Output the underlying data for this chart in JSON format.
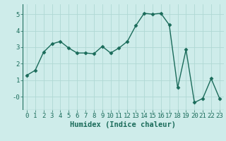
{
  "x": [
    0,
    1,
    2,
    3,
    4,
    5,
    6,
    7,
    8,
    9,
    10,
    11,
    12,
    13,
    14,
    15,
    16,
    17,
    18,
    19,
    20,
    21,
    22,
    23
  ],
  "y": [
    1.3,
    1.6,
    2.7,
    3.2,
    3.35,
    2.95,
    2.65,
    2.65,
    2.6,
    3.05,
    2.65,
    2.95,
    3.35,
    4.3,
    5.05,
    5.0,
    5.05,
    4.35,
    0.55,
    2.85,
    -0.35,
    -0.1,
    1.1,
    -0.1
  ],
  "line_color": "#1a6b5a",
  "marker": "D",
  "marker_size": 2.5,
  "xlabel": "Humidex (Indice chaleur)",
  "ylim": [
    -0.8,
    5.6
  ],
  "xlim": [
    -0.5,
    23.5
  ],
  "yticks": [
    0,
    1,
    2,
    3,
    4,
    5
  ],
  "ytick_labels": [
    "-0",
    "1",
    "2",
    "3",
    "4",
    "5"
  ],
  "xticks": [
    0,
    1,
    2,
    3,
    4,
    5,
    6,
    7,
    8,
    9,
    10,
    11,
    12,
    13,
    14,
    15,
    16,
    17,
    18,
    19,
    20,
    21,
    22,
    23
  ],
  "bg_color": "#ceecea",
  "grid_color": "#b0d8d4",
  "xlabel_fontsize": 7.5,
  "tick_fontsize": 6.5,
  "linewidth": 1.0
}
